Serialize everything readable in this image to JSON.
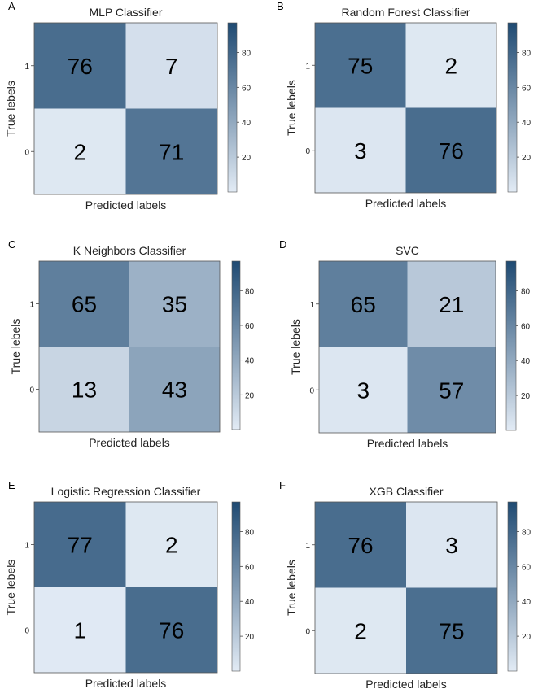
{
  "chart_data": [
    {
      "type": "heatmap",
      "panel_letter": "A",
      "title": "MLP Classifier",
      "xlabel": "Predicted labels",
      "ylabel": "True lebels",
      "row_labels": [
        "1",
        "0"
      ],
      "matrix": [
        [
          76,
          7
        ],
        [
          2,
          71
        ]
      ],
      "colorbar_ticks": [
        20,
        40,
        60,
        80
      ],
      "colorbar_range": [
        0,
        97
      ]
    },
    {
      "type": "heatmap",
      "panel_letter": "B",
      "title": "Random Forest Classifier",
      "xlabel": "Predicted labels",
      "ylabel": "True lebels",
      "row_labels": [
        "1",
        "0"
      ],
      "matrix": [
        [
          75,
          2
        ],
        [
          3,
          76
        ]
      ],
      "colorbar_ticks": [
        20,
        40,
        60,
        80
      ],
      "colorbar_range": [
        0,
        97
      ]
    },
    {
      "type": "heatmap",
      "panel_letter": "C",
      "title": "K Neighbors Classifier",
      "xlabel": "Predicted labels",
      "ylabel": "True lebels",
      "row_labels": [
        "1",
        "0"
      ],
      "matrix": [
        [
          65,
          35
        ],
        [
          13,
          43
        ]
      ],
      "colorbar_ticks": [
        20,
        40,
        60,
        80
      ],
      "colorbar_range": [
        0,
        97
      ]
    },
    {
      "type": "heatmap",
      "panel_letter": "D",
      "title": "SVC",
      "xlabel": "Predicted labels",
      "ylabel": "True lebels",
      "row_labels": [
        "1",
        "0"
      ],
      "matrix": [
        [
          65,
          21
        ],
        [
          3,
          57
        ]
      ],
      "colorbar_ticks": [
        20,
        40,
        60,
        80
      ],
      "colorbar_range": [
        0,
        97
      ]
    },
    {
      "type": "heatmap",
      "panel_letter": "E",
      "title": "Logistic Regression Classifier",
      "xlabel": "Predicted labels",
      "ylabel": "True lebels",
      "row_labels": [
        "1",
        "0"
      ],
      "matrix": [
        [
          77,
          2
        ],
        [
          1,
          76
        ]
      ],
      "colorbar_ticks": [
        20,
        40,
        60,
        80
      ],
      "colorbar_range": [
        0,
        97
      ]
    },
    {
      "type": "heatmap",
      "panel_letter": "F",
      "title": "XGB Classifier",
      "xlabel": "Predicted labels",
      "ylabel": "True lebels",
      "row_labels": [
        "1",
        "0"
      ],
      "matrix": [
        [
          76,
          3
        ],
        [
          2,
          75
        ]
      ],
      "colorbar_ticks": [
        20,
        40,
        60,
        80
      ],
      "colorbar_range": [
        0,
        97
      ]
    }
  ],
  "colors": {
    "colormap_low": "#e2ebf5",
    "colormap_high": "#1f4a72",
    "frame": "#555555"
  }
}
